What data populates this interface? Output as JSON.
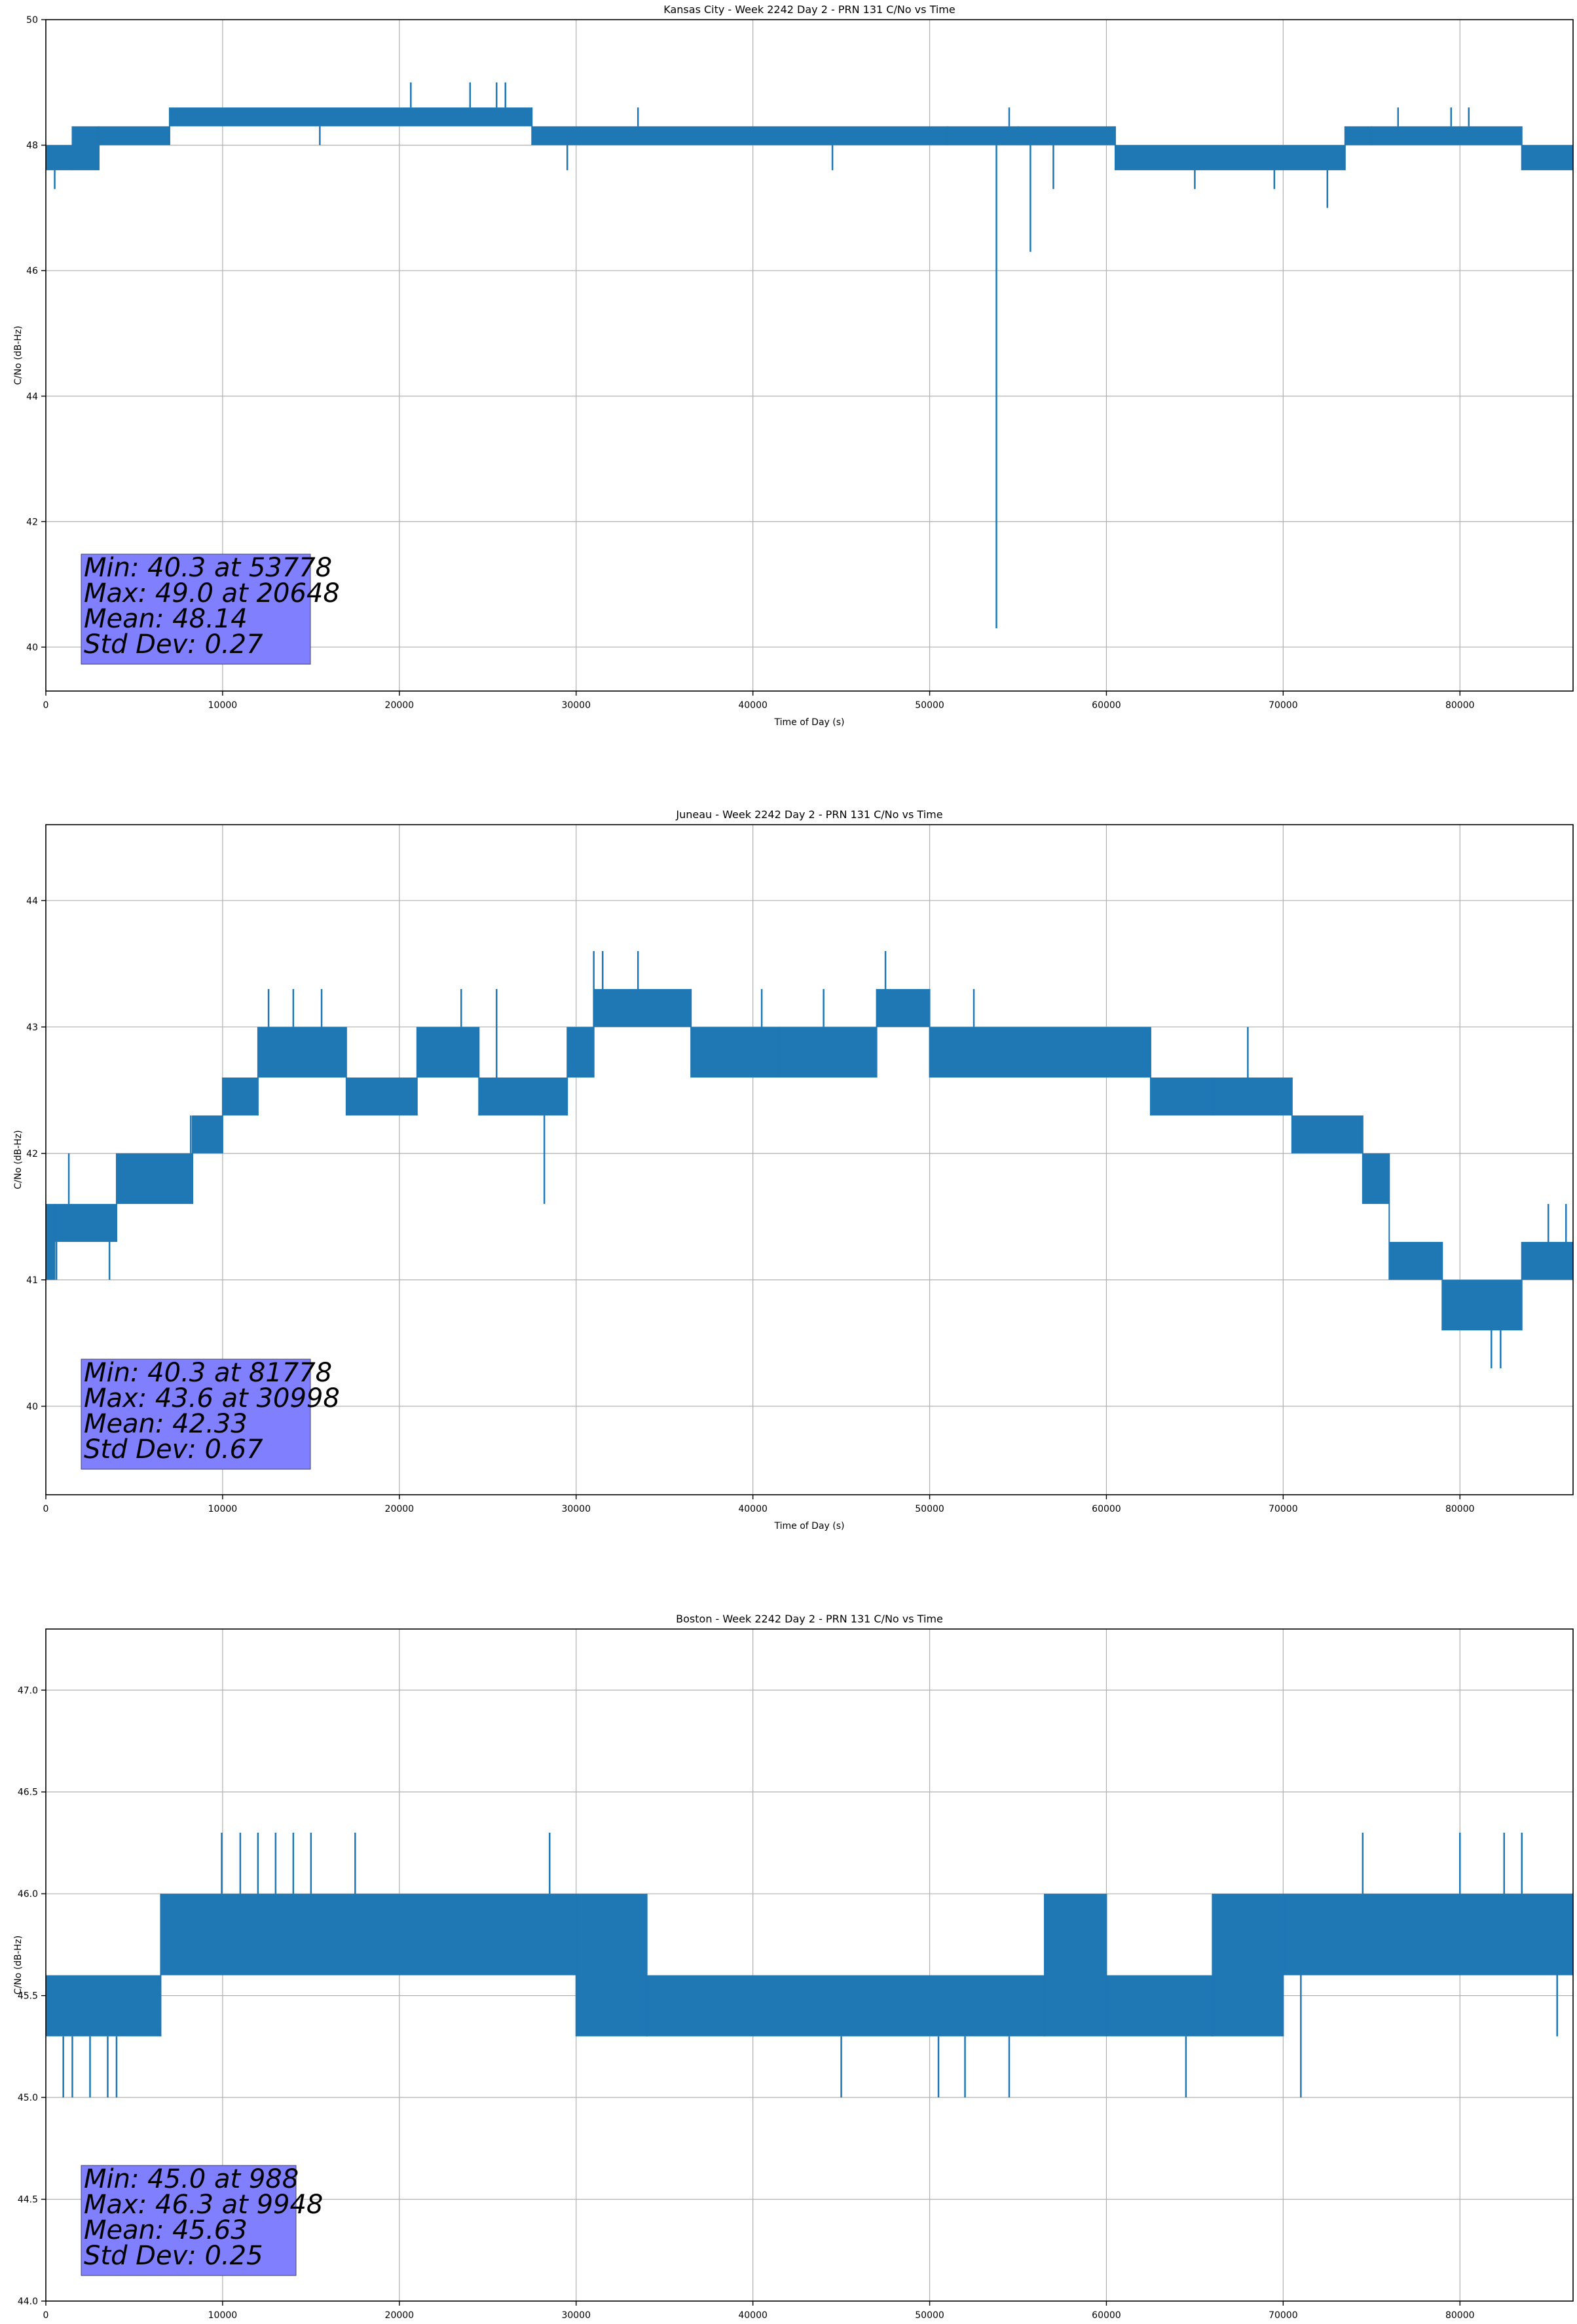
{
  "colors": {
    "line": "#1f77b4",
    "grid": "#b0b0b0",
    "stats_box": "#8080ff",
    "axes": "#000000"
  },
  "chart_data": [
    {
      "type": "line",
      "title": "Kansas City - Week 2242 Day 2 - PRN 131 C/No vs Time",
      "xlabel": "Time of Day (s)",
      "ylabel": "C/No (dB-Hz)",
      "xlim": [
        0,
        86400
      ],
      "ylim": [
        39.3,
        50.0
      ],
      "xticks": [
        0,
        10000,
        20000,
        30000,
        40000,
        50000,
        60000,
        70000,
        80000
      ],
      "xtick_labels": [
        "0",
        "10000",
        "20000",
        "30000",
        "40000",
        "50000",
        "60000",
        "70000",
        "80000"
      ],
      "yticks": [
        40,
        42,
        44,
        46,
        48,
        50
      ],
      "ytick_labels": [
        "40",
        "42",
        "44",
        "46",
        "48",
        "50"
      ],
      "grid": true,
      "stats": [
        "Min: 40.3 at 53778",
        "Max: 49.0 at 20648",
        "Mean: 48.14",
        "Std Dev: 0.27"
      ],
      "band_segments": [
        {
          "x": [
            0,
            1500
          ],
          "low": 47.6,
          "high": 48.0
        },
        {
          "x": [
            1500,
            3000
          ],
          "low": 47.6,
          "high": 48.3
        },
        {
          "x": [
            3000,
            7000
          ],
          "low": 48.0,
          "high": 48.3
        },
        {
          "x": [
            7000,
            27500
          ],
          "low": 48.3,
          "high": 48.6
        },
        {
          "x": [
            27500,
            55000
          ],
          "low": 48.0,
          "high": 48.3
        },
        {
          "x": [
            55000,
            60500
          ],
          "low": 48.0,
          "high": 48.3
        },
        {
          "x": [
            60500,
            73500
          ],
          "low": 47.6,
          "high": 48.0
        },
        {
          "x": [
            73500,
            83500
          ],
          "low": 48.0,
          "high": 48.3
        },
        {
          "x": [
            83500,
            86400
          ],
          "low": 47.6,
          "high": 48.0
        }
      ],
      "spikes": [
        {
          "x": 500,
          "y": 47.3
        },
        {
          "x": 15500,
          "y": 48.0
        },
        {
          "x": 20648,
          "y": 49.0
        },
        {
          "x": 24000,
          "y": 49.0
        },
        {
          "x": 25500,
          "y": 49.0
        },
        {
          "x": 26000,
          "y": 49.0
        },
        {
          "x": 29500,
          "y": 47.6
        },
        {
          "x": 33500,
          "y": 48.6
        },
        {
          "x": 44500,
          "y": 47.6
        },
        {
          "x": 51000,
          "y": 48.3
        },
        {
          "x": 53778,
          "y": 40.3
        },
        {
          "x": 54500,
          "y": 48.6
        },
        {
          "x": 55700,
          "y": 46.3
        },
        {
          "x": 57000,
          "y": 47.3
        },
        {
          "x": 65000,
          "y": 47.3
        },
        {
          "x": 69500,
          "y": 47.3
        },
        {
          "x": 72500,
          "y": 47.0
        },
        {
          "x": 75000,
          "y": 48.3
        },
        {
          "x": 76500,
          "y": 48.6
        },
        {
          "x": 79500,
          "y": 48.6
        },
        {
          "x": 80500,
          "y": 48.6
        }
      ]
    },
    {
      "type": "line",
      "title": "Juneau - Week 2242 Day 2 - PRN 131 C/No vs Time",
      "xlabel": "Time of Day (s)",
      "ylabel": "C/No (dB-Hz)",
      "xlim": [
        0,
        86400
      ],
      "ylim": [
        39.3,
        44.6
      ],
      "xticks": [
        0,
        10000,
        20000,
        30000,
        40000,
        50000,
        60000,
        70000,
        80000
      ],
      "xtick_labels": [
        "0",
        "10000",
        "20000",
        "30000",
        "40000",
        "50000",
        "60000",
        "70000",
        "80000"
      ],
      "yticks": [
        40,
        41,
        42,
        43,
        44
      ],
      "ytick_labels": [
        "40",
        "41",
        "42",
        "43",
        "44"
      ],
      "grid": true,
      "stats": [
        "Min: 40.3 at 81778",
        "Max: 43.6 at 30998",
        "Mean: 42.33",
        "Std Dev: 0.67"
      ],
      "band_segments": [
        {
          "x": [
            0,
            500
          ],
          "low": 41.0,
          "high": 41.6
        },
        {
          "x": [
            500,
            4000
          ],
          "low": 41.3,
          "high": 41.6
        },
        {
          "x": [
            4000,
            8300
          ],
          "low": 41.6,
          "high": 42.0
        },
        {
          "x": [
            8300,
            10000
          ],
          "low": 42.0,
          "high": 42.3
        },
        {
          "x": [
            10000,
            12000
          ],
          "low": 42.3,
          "high": 42.6
        },
        {
          "x": [
            12000,
            17000
          ],
          "low": 42.6,
          "high": 43.0
        },
        {
          "x": [
            17000,
            21000
          ],
          "low": 42.3,
          "high": 42.6
        },
        {
          "x": [
            21000,
            24500
          ],
          "low": 42.6,
          "high": 43.0
        },
        {
          "x": [
            24500,
            29500
          ],
          "low": 42.3,
          "high": 42.6
        },
        {
          "x": [
            29500,
            31000
          ],
          "low": 42.6,
          "high": 43.0
        },
        {
          "x": [
            31000,
            36500
          ],
          "low": 43.0,
          "high": 43.3
        },
        {
          "x": [
            36500,
            41500
          ],
          "low": 42.6,
          "high": 43.0
        },
        {
          "x": [
            41500,
            47000
          ],
          "low": 42.6,
          "high": 43.0
        },
        {
          "x": [
            47000,
            50000
          ],
          "low": 43.0,
          "high": 43.3
        },
        {
          "x": [
            50000,
            62500
          ],
          "low": 42.6,
          "high": 43.0
        },
        {
          "x": [
            62500,
            66000
          ],
          "low": 42.3,
          "high": 42.6
        },
        {
          "x": [
            66000,
            70500
          ],
          "low": 42.3,
          "high": 42.6
        },
        {
          "x": [
            70500,
            74500
          ],
          "low": 42.0,
          "high": 42.3
        },
        {
          "x": [
            74500,
            76000
          ],
          "low": 41.6,
          "high": 42.0
        },
        {
          "x": [
            76000,
            79000
          ],
          "low": 41.0,
          "high": 41.3
        },
        {
          "x": [
            79000,
            83500
          ],
          "low": 40.6,
          "high": 41.0
        },
        {
          "x": [
            83500,
            86400
          ],
          "low": 41.0,
          "high": 41.3
        }
      ],
      "spikes": [
        {
          "x": 600,
          "y": 41.0
        },
        {
          "x": 1300,
          "y": 42.0
        },
        {
          "x": 3600,
          "y": 41.0
        },
        {
          "x": 8200,
          "y": 42.3
        },
        {
          "x": 9600,
          "y": 42.0
        },
        {
          "x": 12600,
          "y": 43.3
        },
        {
          "x": 14000,
          "y": 43.3
        },
        {
          "x": 15600,
          "y": 43.3
        },
        {
          "x": 23500,
          "y": 43.3
        },
        {
          "x": 25500,
          "y": 43.3
        },
        {
          "x": 28200,
          "y": 41.6
        },
        {
          "x": 30998,
          "y": 43.6
        },
        {
          "x": 31500,
          "y": 43.6
        },
        {
          "x": 33500,
          "y": 43.6
        },
        {
          "x": 40500,
          "y": 43.3
        },
        {
          "x": 44000,
          "y": 43.3
        },
        {
          "x": 47500,
          "y": 43.6
        },
        {
          "x": 52500,
          "y": 43.3
        },
        {
          "x": 68000,
          "y": 43.0
        },
        {
          "x": 81778,
          "y": 40.3
        },
        {
          "x": 82300,
          "y": 40.3
        },
        {
          "x": 85000,
          "y": 41.6
        },
        {
          "x": 86000,
          "y": 41.6
        }
      ]
    },
    {
      "type": "line",
      "title": "Boston - Week 2242 Day 2 - PRN 131 C/No vs Time",
      "xlabel": "Time of Day (s)",
      "ylabel": "C/No (dB-Hz)",
      "xlim": [
        0,
        86400
      ],
      "ylim": [
        44.0,
        47.3
      ],
      "xticks": [
        0,
        10000,
        20000,
        30000,
        40000,
        50000,
        60000,
        70000,
        80000
      ],
      "xtick_labels": [
        "0",
        "10000",
        "20000",
        "30000",
        "40000",
        "50000",
        "60000",
        "70000",
        "80000"
      ],
      "yticks": [
        44.0,
        44.5,
        45.0,
        45.5,
        46.0,
        46.5,
        47.0
      ],
      "ytick_labels": [
        "44.0",
        "44.5",
        "45.0",
        "45.5",
        "46.0",
        "46.5",
        "47.0"
      ],
      "grid": true,
      "stats": [
        "Min: 45.0 at 988",
        "Max: 46.3 at 9948",
        "Mean: 45.63",
        "Std Dev: 0.25"
      ],
      "band_segments": [
        {
          "x": [
            0,
            6500
          ],
          "low": 45.3,
          "high": 45.6
        },
        {
          "x": [
            6500,
            30000
          ],
          "low": 45.6,
          "high": 46.0
        },
        {
          "x": [
            30000,
            34000
          ],
          "low": 45.3,
          "high": 46.0
        },
        {
          "x": [
            34000,
            56500
          ],
          "low": 45.3,
          "high": 45.6
        },
        {
          "x": [
            56500,
            60000
          ],
          "low": 45.3,
          "high": 46.0
        },
        {
          "x": [
            60000,
            66000
          ],
          "low": 45.3,
          "high": 45.6
        },
        {
          "x": [
            66000,
            70000
          ],
          "low": 45.3,
          "high": 46.0
        },
        {
          "x": [
            70000,
            86400
          ],
          "low": 45.6,
          "high": 46.0
        }
      ],
      "spikes": [
        {
          "x": 988,
          "y": 45.0
        },
        {
          "x": 1500,
          "y": 45.0
        },
        {
          "x": 2500,
          "y": 45.0
        },
        {
          "x": 3500,
          "y": 45.0
        },
        {
          "x": 4000,
          "y": 45.0
        },
        {
          "x": 9948,
          "y": 46.3
        },
        {
          "x": 11000,
          "y": 46.3
        },
        {
          "x": 12000,
          "y": 46.3
        },
        {
          "x": 13000,
          "y": 46.3
        },
        {
          "x": 14000,
          "y": 46.3
        },
        {
          "x": 15000,
          "y": 46.3
        },
        {
          "x": 17500,
          "y": 46.3
        },
        {
          "x": 28500,
          "y": 46.3
        },
        {
          "x": 45000,
          "y": 45.0
        },
        {
          "x": 50500,
          "y": 45.0
        },
        {
          "x": 52000,
          "y": 45.0
        },
        {
          "x": 54500,
          "y": 45.0
        },
        {
          "x": 64500,
          "y": 45.0
        },
        {
          "x": 71000,
          "y": 45.0
        },
        {
          "x": 74500,
          "y": 46.3
        },
        {
          "x": 80000,
          "y": 46.3
        },
        {
          "x": 82500,
          "y": 46.3
        },
        {
          "x": 83500,
          "y": 46.3
        },
        {
          "x": 85500,
          "y": 45.3
        }
      ]
    }
  ]
}
